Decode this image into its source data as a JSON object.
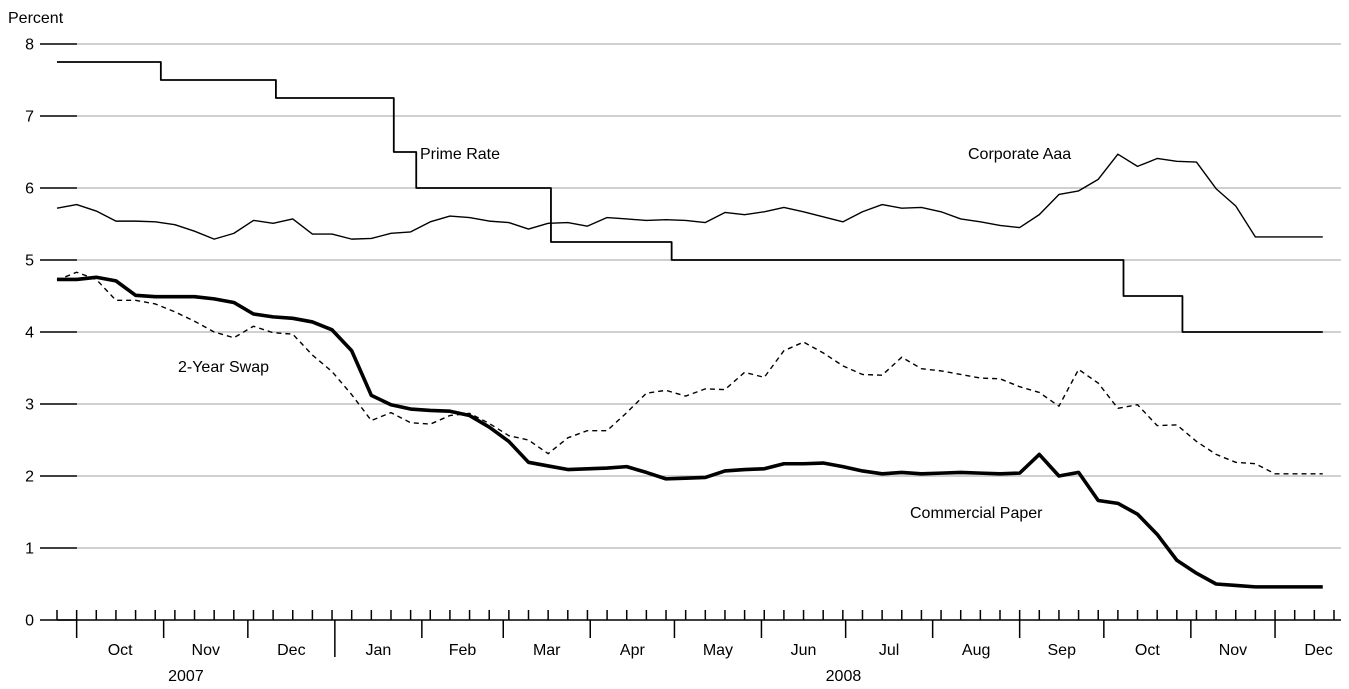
{
  "chart_data": {
    "type": "line",
    "ylabel": "Percent",
    "ylim": [
      0,
      8
    ],
    "yticks": [
      0,
      1,
      2,
      3,
      4,
      5,
      6,
      7,
      8
    ],
    "grid": true,
    "x_start": "2007-09-24",
    "x_end": "2008-12-31",
    "x_months": [
      "Oct",
      "Nov",
      "Dec",
      "Jan",
      "Feb",
      "Mar",
      "Apr",
      "May",
      "Jun",
      "Jul",
      "Aug",
      "Sep",
      "Oct",
      "Nov",
      "Dec"
    ],
    "x_years": [
      "2007",
      "2008"
    ],
    "series": [
      {
        "name": "Prime Rate",
        "label": "Prime Rate",
        "style": "step",
        "x": [
          "2007-09-24",
          "2007-10-31",
          "2007-12-11",
          "2008-01-22",
          "2008-01-30",
          "2008-03-18",
          "2008-04-30",
          "2008-10-08",
          "2008-10-29",
          "2008-12-18"
        ],
        "values": [
          7.75,
          7.5,
          7.25,
          6.5,
          6.0,
          5.25,
          5.0,
          4.5,
          4.0,
          4.0
        ]
      },
      {
        "name": "Corporate Aaa",
        "label": "Corporate Aaa",
        "style": "thin",
        "x": [
          "2007-09-24",
          "2007-10-01",
          "2007-10-08",
          "2007-10-15",
          "2007-10-22",
          "2007-10-29",
          "2007-11-05",
          "2007-11-12",
          "2007-11-19",
          "2007-11-26",
          "2007-12-03",
          "2007-12-10",
          "2007-12-17",
          "2007-12-24",
          "2007-12-31",
          "2008-01-07",
          "2008-01-14",
          "2008-01-21",
          "2008-01-28",
          "2008-02-04",
          "2008-02-11",
          "2008-02-18",
          "2008-02-25",
          "2008-03-03",
          "2008-03-10",
          "2008-03-17",
          "2008-03-24",
          "2008-03-31",
          "2008-04-07",
          "2008-04-14",
          "2008-04-21",
          "2008-04-28",
          "2008-05-05",
          "2008-05-12",
          "2008-05-19",
          "2008-05-26",
          "2008-06-02",
          "2008-06-09",
          "2008-06-16",
          "2008-06-23",
          "2008-06-30",
          "2008-07-07",
          "2008-07-14",
          "2008-07-21",
          "2008-07-28",
          "2008-08-04",
          "2008-08-11",
          "2008-08-18",
          "2008-08-25",
          "2008-09-01",
          "2008-09-08",
          "2008-09-15",
          "2008-09-22",
          "2008-09-29",
          "2008-10-06",
          "2008-10-13",
          "2008-10-20",
          "2008-10-27",
          "2008-11-03",
          "2008-11-10",
          "2008-11-17",
          "2008-11-24",
          "2008-12-01",
          "2008-12-08",
          "2008-12-18"
        ],
        "values": [
          5.72,
          5.77,
          5.68,
          5.54,
          5.54,
          5.53,
          5.49,
          5.4,
          5.29,
          5.37,
          5.55,
          5.51,
          5.57,
          5.36,
          5.36,
          5.29,
          5.3,
          5.37,
          5.39,
          5.53,
          5.61,
          5.59,
          5.54,
          5.52,
          5.43,
          5.51,
          5.52,
          5.47,
          5.59,
          5.57,
          5.55,
          5.56,
          5.55,
          5.52,
          5.66,
          5.63,
          5.67,
          5.73,
          5.67,
          5.6,
          5.53,
          5.67,
          5.77,
          5.72,
          5.73,
          5.67,
          5.57,
          5.53,
          5.48,
          5.45,
          5.63,
          5.91,
          5.96,
          6.12,
          6.47,
          6.3,
          6.41,
          6.37,
          6.36,
          5.99,
          5.75,
          5.32,
          5.32,
          5.32,
          5.32
        ]
      },
      {
        "name": "2-Year Swap",
        "label": "2-Year Swap",
        "style": "dashed",
        "x": [
          "2007-09-24",
          "2007-10-01",
          "2007-10-08",
          "2007-10-15",
          "2007-10-22",
          "2007-10-29",
          "2007-11-05",
          "2007-11-12",
          "2007-11-19",
          "2007-11-26",
          "2007-12-03",
          "2007-12-10",
          "2007-12-17",
          "2007-12-24",
          "2007-12-31",
          "2008-01-07",
          "2008-01-14",
          "2008-01-21",
          "2008-01-28",
          "2008-02-04",
          "2008-02-11",
          "2008-02-18",
          "2008-02-25",
          "2008-03-03",
          "2008-03-10",
          "2008-03-17",
          "2008-03-24",
          "2008-03-31",
          "2008-04-07",
          "2008-04-14",
          "2008-04-21",
          "2008-04-28",
          "2008-05-05",
          "2008-05-12",
          "2008-05-19",
          "2008-05-26",
          "2008-06-02",
          "2008-06-09",
          "2008-06-16",
          "2008-06-23",
          "2008-06-30",
          "2008-07-07",
          "2008-07-14",
          "2008-07-21",
          "2008-07-28",
          "2008-08-04",
          "2008-08-11",
          "2008-08-18",
          "2008-08-25",
          "2008-09-01",
          "2008-09-08",
          "2008-09-15",
          "2008-09-22",
          "2008-09-29",
          "2008-10-06",
          "2008-10-13",
          "2008-10-20",
          "2008-10-27",
          "2008-11-03",
          "2008-11-10",
          "2008-11-17",
          "2008-11-24",
          "2008-12-01",
          "2008-12-08",
          "2008-12-18"
        ],
        "values": [
          4.72,
          4.83,
          4.73,
          4.44,
          4.44,
          4.39,
          4.28,
          4.15,
          4.0,
          3.92,
          4.08,
          3.99,
          3.97,
          3.68,
          3.45,
          3.13,
          2.77,
          2.88,
          2.74,
          2.72,
          2.84,
          2.87,
          2.73,
          2.56,
          2.5,
          2.31,
          2.53,
          2.63,
          2.63,
          2.88,
          3.15,
          3.19,
          3.11,
          3.21,
          3.2,
          3.44,
          3.37,
          3.74,
          3.86,
          3.71,
          3.53,
          3.41,
          3.4,
          3.65,
          3.49,
          3.46,
          3.41,
          3.36,
          3.35,
          3.24,
          3.16,
          2.97,
          3.48,
          3.29,
          2.94,
          2.99,
          2.7,
          2.71,
          2.48,
          2.3,
          2.19,
          2.17,
          2.03,
          2.03,
          2.03
        ]
      },
      {
        "name": "Commercial Paper",
        "label": "Commercial Paper",
        "style": "thick",
        "x": [
          "2007-09-24",
          "2007-10-01",
          "2007-10-08",
          "2007-10-15",
          "2007-10-22",
          "2007-10-29",
          "2007-11-05",
          "2007-11-12",
          "2007-11-19",
          "2007-11-26",
          "2007-12-03",
          "2007-12-10",
          "2007-12-17",
          "2007-12-24",
          "2007-12-31",
          "2008-01-07",
          "2008-01-14",
          "2008-01-21",
          "2008-01-28",
          "2008-02-04",
          "2008-02-11",
          "2008-02-18",
          "2008-02-25",
          "2008-03-03",
          "2008-03-10",
          "2008-03-17",
          "2008-03-24",
          "2008-03-31",
          "2008-04-07",
          "2008-04-14",
          "2008-04-21",
          "2008-04-28",
          "2008-05-05",
          "2008-05-12",
          "2008-05-19",
          "2008-05-26",
          "2008-06-02",
          "2008-06-09",
          "2008-06-16",
          "2008-06-23",
          "2008-06-30",
          "2008-07-07",
          "2008-07-14",
          "2008-07-21",
          "2008-07-28",
          "2008-08-04",
          "2008-08-11",
          "2008-08-18",
          "2008-08-25",
          "2008-09-01",
          "2008-09-08",
          "2008-09-15",
          "2008-09-22",
          "2008-09-29",
          "2008-10-06",
          "2008-10-13",
          "2008-10-20",
          "2008-10-27",
          "2008-11-03",
          "2008-11-10",
          "2008-11-17",
          "2008-11-24",
          "2008-12-01",
          "2008-12-08",
          "2008-12-18"
        ],
        "values": [
          4.73,
          4.73,
          4.76,
          4.71,
          4.51,
          4.49,
          4.49,
          4.49,
          4.46,
          4.41,
          4.25,
          4.21,
          4.19,
          4.14,
          4.03,
          3.74,
          3.12,
          2.99,
          2.93,
          2.91,
          2.9,
          2.84,
          2.68,
          2.48,
          2.19,
          2.14,
          2.09,
          2.1,
          2.11,
          2.13,
          2.05,
          1.96,
          1.97,
          1.98,
          2.07,
          2.09,
          2.1,
          2.17,
          2.17,
          2.18,
          2.13,
          2.07,
          2.03,
          2.05,
          2.03,
          2.04,
          2.05,
          2.04,
          2.03,
          2.04,
          2.3,
          2.0,
          2.05,
          1.66,
          1.62,
          1.47,
          1.19,
          0.83,
          0.65,
          0.5,
          0.48,
          0.46,
          0.46,
          0.46,
          0.46
        ]
      }
    ]
  }
}
